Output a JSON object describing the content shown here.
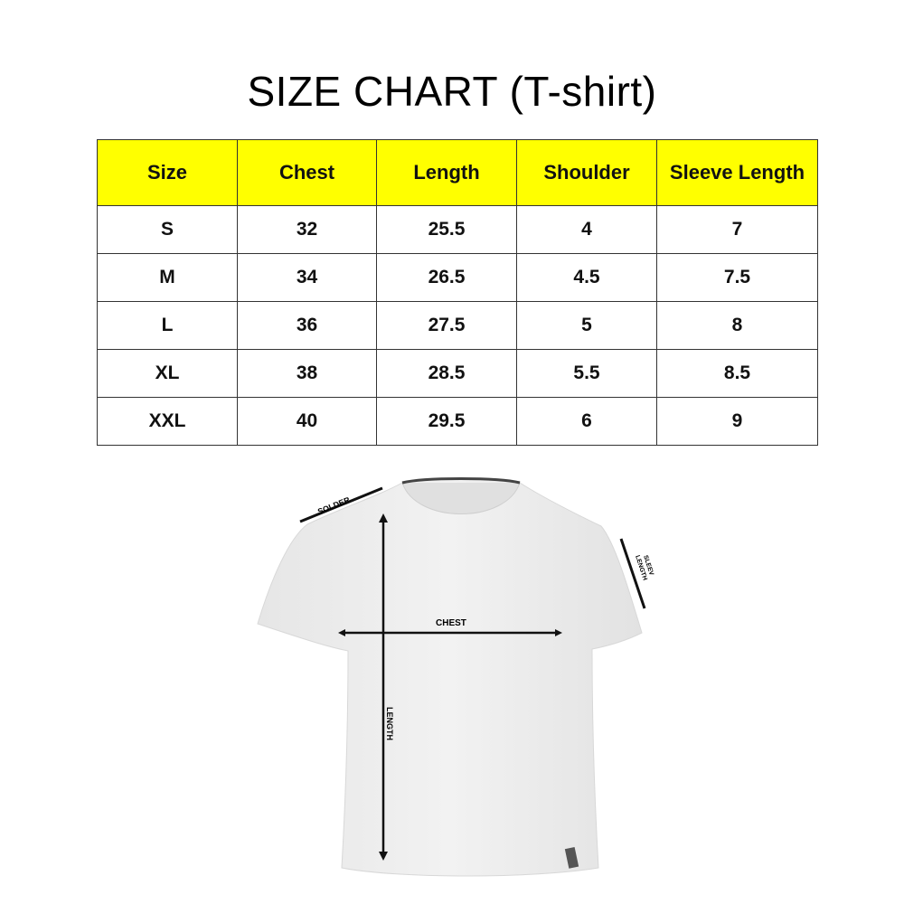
{
  "title": "SIZE CHART (T-shirt)",
  "header_color": "#ffff00",
  "table": {
    "columns": [
      "Size",
      "Chest",
      "Length",
      "Shoulder",
      "Sleeve Length"
    ],
    "rows": [
      [
        "S",
        "32",
        "25.5",
        "4",
        "7"
      ],
      [
        "M",
        "34",
        "26.5",
        "4.5",
        "7.5"
      ],
      [
        "L",
        "36",
        "27.5",
        "5",
        "8"
      ],
      [
        "XL",
        "38",
        "28.5",
        "5.5",
        "8.5"
      ],
      [
        "XXL",
        "40",
        "29.5",
        "6",
        "9"
      ]
    ]
  },
  "diagram": {
    "labels": {
      "shoulder": "SOLDER",
      "sleeve_line1": "SLEEV",
      "sleeve_line2": "LENGTH",
      "chest": "CHEST",
      "length": "LENGTH"
    }
  }
}
